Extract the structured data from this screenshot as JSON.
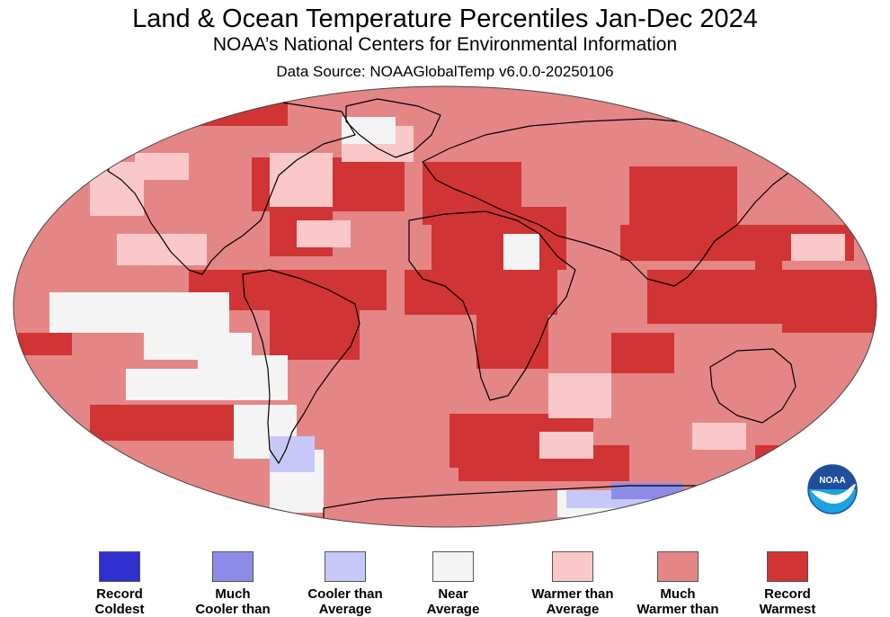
{
  "title": "Land & Ocean Temperature Percentiles Jan-Dec 2024",
  "subtitle": "NOAA’s National Centers for Environmental Information",
  "source": "Data Source: NOAAGlobalTemp v6.0.0-20250106",
  "logo": {
    "text": "NOAA",
    "colors": {
      "top": "#1f4f9c",
      "bottom": "#1aa3e0",
      "bird": "#ffffff"
    }
  },
  "legend": [
    {
      "key": "record-coldest",
      "label": "Record\nColdest",
      "color": "#3030d0"
    },
    {
      "key": "much-cooler",
      "label": "Much\nCooler than",
      "color": "#8c8ce8"
    },
    {
      "key": "cooler",
      "label": "Cooler than\nAverage",
      "color": "#c8c8f8"
    },
    {
      "key": "near-average",
      "label": "Near\nAverage",
      "color": "#f4f4f4"
    },
    {
      "key": "warmer",
      "label": "Warmer than\nAverage",
      "color": "#fac8c8"
    },
    {
      "key": "much-warmer",
      "label": "Much\nWarmer than",
      "color": "#e58686"
    },
    {
      "key": "record-warmest",
      "label": "Record\nWarmest",
      "color": "#d03434"
    }
  ]
}
